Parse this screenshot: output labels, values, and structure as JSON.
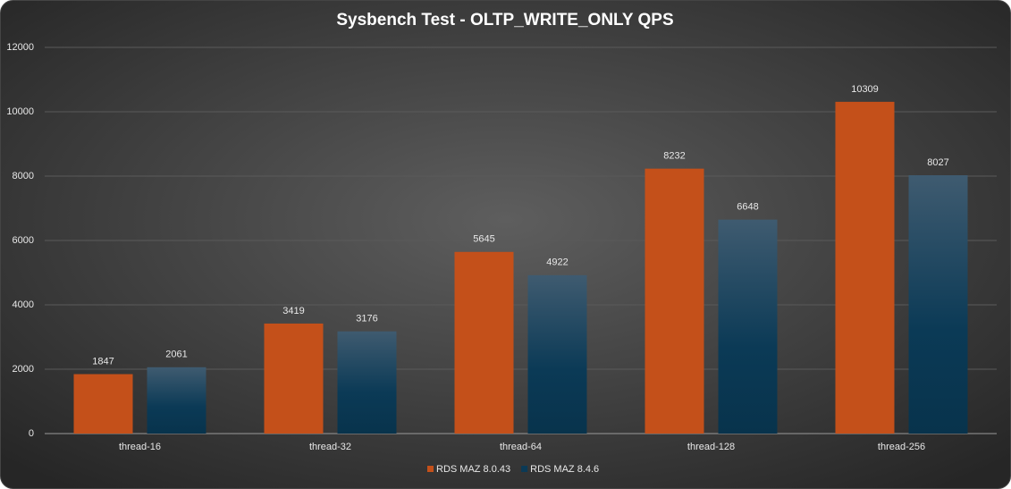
{
  "chart_data": {
    "type": "bar",
    "title": "Sysbench Test - OLTP_WRITE_ONLY QPS",
    "categories": [
      "thread-16",
      "thread-32",
      "thread-64",
      "thread-128",
      "thread-256"
    ],
    "series": [
      {
        "name": "RDS MAZ 8.0.43",
        "color": "#c4501a",
        "values": [
          1847,
          3419,
          5645,
          8232,
          10309
        ]
      },
      {
        "name": "RDS MAZ 8.4.6",
        "color": "#0b3a56",
        "values": [
          2061,
          3176,
          4922,
          6648,
          8027
        ]
      }
    ],
    "ylim": [
      0,
      12000
    ],
    "yticks": [
      0,
      2000,
      4000,
      6000,
      8000,
      10000,
      12000
    ],
    "grid": true,
    "legend": "bottom"
  }
}
